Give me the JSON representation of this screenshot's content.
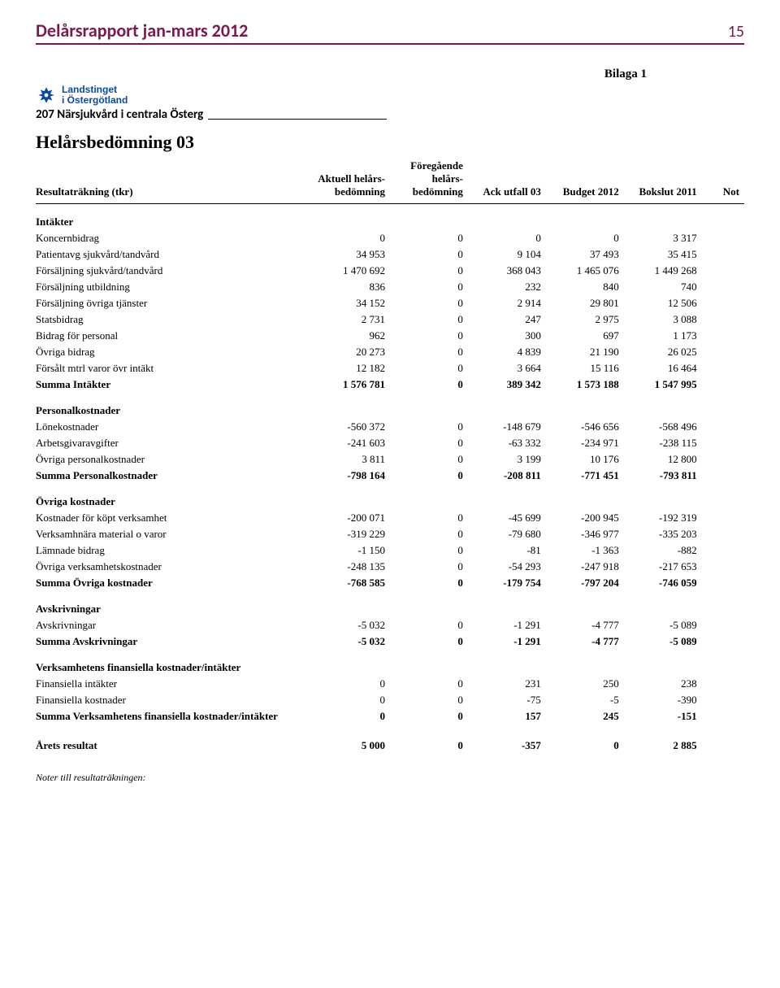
{
  "header": {
    "title": "Delårsrapport jan-mars 2012",
    "page_number": "15",
    "title_color": "#7b1a4f"
  },
  "attachment_label": "Bilaga 1",
  "logo": {
    "line1": "Landstinget",
    "line2": "i Östergötland",
    "color": "#0a4aa0"
  },
  "org_unit": "207  Närsjukvård i centrala Österg",
  "main_title": "Helårsbedömning 03",
  "columns": {
    "c0": "Resultaträkning (tkr)",
    "c1a": "Aktuell helårs-",
    "c1b": "bedömning",
    "c2a": "Föregående",
    "c2b": "helårs-",
    "c2c": "bedömning",
    "c3": "Ack utfall 03",
    "c4": "Budget 2012",
    "c5": "Bokslut 2011",
    "c6": "Not"
  },
  "sections": [
    {
      "title": "Intäkter",
      "rows": [
        {
          "label": "Koncernbidrag",
          "v": [
            "0",
            "0",
            "0",
            "0",
            "3 317"
          ]
        },
        {
          "label": "Patientavg sjukvård/tandvård",
          "v": [
            "34 953",
            "0",
            "9 104",
            "37 493",
            "35 415"
          ]
        },
        {
          "label": "Försäljning sjukvård/tandvård",
          "v": [
            "1 470 692",
            "0",
            "368 043",
            "1 465 076",
            "1 449 268"
          ]
        },
        {
          "label": "Försäljning utbildning",
          "v": [
            "836",
            "0",
            "232",
            "840",
            "740"
          ]
        },
        {
          "label": "Försäljning övriga tjänster",
          "v": [
            "34 152",
            "0",
            "2 914",
            "29 801",
            "12 506"
          ]
        },
        {
          "label": "Statsbidrag",
          "v": [
            "2 731",
            "0",
            "247",
            "2 975",
            "3 088"
          ]
        },
        {
          "label": "Bidrag för personal",
          "v": [
            "962",
            "0",
            "300",
            "697",
            "1 173"
          ]
        },
        {
          "label": "Övriga bidrag",
          "v": [
            "20 273",
            "0",
            "4 839",
            "21 190",
            "26 025"
          ]
        },
        {
          "label": "Försålt mtrl varor övr intäkt",
          "v": [
            "12 182",
            "0",
            "3 664",
            "15 116",
            "16 464"
          ]
        }
      ],
      "sum": {
        "label": "Summa Intäkter",
        "v": [
          "1 576 781",
          "0",
          "389 342",
          "1 573 188",
          "1 547 995"
        ]
      }
    },
    {
      "title": "Personalkostnader",
      "rows": [
        {
          "label": "Lönekostnader",
          "v": [
            "-560 372",
            "0",
            "-148 679",
            "-546 656",
            "-568 496"
          ]
        },
        {
          "label": "Arbetsgivaravgifter",
          "v": [
            "-241 603",
            "0",
            "-63 332",
            "-234 971",
            "-238 115"
          ]
        },
        {
          "label": "Övriga personalkostnader",
          "v": [
            "3 811",
            "0",
            "3 199",
            "10 176",
            "12 800"
          ]
        }
      ],
      "sum": {
        "label": "Summa Personalkostnader",
        "v": [
          "-798 164",
          "0",
          "-208 811",
          "-771 451",
          "-793 811"
        ]
      }
    },
    {
      "title": "Övriga kostnader",
      "rows": [
        {
          "label": "Kostnader för köpt verksamhet",
          "v": [
            "-200 071",
            "0",
            "-45 699",
            "-200 945",
            "-192 319"
          ]
        },
        {
          "label": "Verksamhnära material o varor",
          "v": [
            "-319 229",
            "0",
            "-79 680",
            "-346 977",
            "-335 203"
          ]
        },
        {
          "label": "Lämnade bidrag",
          "v": [
            "-1 150",
            "0",
            "-81",
            "-1 363",
            "-882"
          ]
        },
        {
          "label": "Övriga verksamhetskostnader",
          "v": [
            "-248 135",
            "0",
            "-54 293",
            "-247 918",
            "-217 653"
          ]
        }
      ],
      "sum": {
        "label": "Summa Övriga kostnader",
        "v": [
          "-768 585",
          "0",
          "-179 754",
          "-797 204",
          "-746 059"
        ]
      }
    },
    {
      "title": "Avskrivningar",
      "rows": [
        {
          "label": "Avskrivningar",
          "v": [
            "-5 032",
            "0",
            "-1 291",
            "-4 777",
            "-5 089"
          ]
        }
      ],
      "sum": {
        "label": "Summa Avskrivningar",
        "v": [
          "-5 032",
          "0",
          "-1 291",
          "-4 777",
          "-5 089"
        ]
      }
    },
    {
      "title": "Verksamhetens finansiella kostnader/intäkter",
      "rows": [
        {
          "label": "Finansiella intäkter",
          "v": [
            "0",
            "0",
            "231",
            "250",
            "238"
          ]
        },
        {
          "label": "Finansiella kostnader",
          "v": [
            "0",
            "0",
            "-75",
            "-5",
            "-390"
          ]
        }
      ],
      "sum": {
        "label": "Summa Verksamhetens finansiella kostnader/intäkter",
        "v": [
          "0",
          "0",
          "157",
          "245",
          "-151"
        ]
      }
    }
  ],
  "final": {
    "label": "Årets resultat",
    "v": [
      "5 000",
      "0",
      "-357",
      "0",
      "2 885"
    ]
  },
  "footnote": "Noter till resultaträkningen:"
}
